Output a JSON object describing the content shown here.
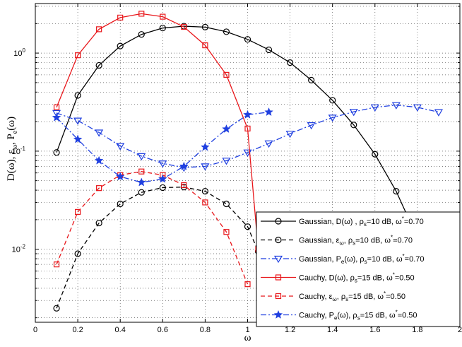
{
  "chart_data": {
    "type": "line",
    "xlabel": "ω",
    "ylabel": "D(ω),  ε",
    "ylabel_sub": "ω",
    "ylabel_tail": ",  P",
    "ylabel_sub2": "e",
    "ylabel_end": "(ω)",
    "xlim": [
      0,
      2
    ],
    "ylim": [
      0.0018,
      3.2
    ],
    "yscale": "log",
    "grid": "dotted",
    "legend_position": "bottom-right",
    "x_ticks": [
      "0",
      "0.2",
      "0.4",
      "0.6",
      "0.8",
      "1",
      "1.2",
      "1.4",
      "1.6",
      "1.8",
      "2"
    ],
    "y_ticks": [
      {
        "base": "10",
        "exp": "-2",
        "value": 0.01
      },
      {
        "base": "10",
        "exp": "-1",
        "value": 0.1
      },
      {
        "base": "10",
        "exp": "0",
        "value": 1
      }
    ],
    "series": [
      {
        "name": "Gaussian, D(ω) , ρ_s=10 dB, ω*=0.70",
        "legend": {
          "main": "Gaussian, D(ω) , ρ",
          "sub": "s",
          "mid": "=10 dB, ω",
          "sup": "*",
          "end": "=0.70"
        },
        "color": "#000000",
        "dash": "",
        "marker": "circle",
        "x": [
          0.1,
          0.2,
          0.3,
          0.4,
          0.5,
          0.6,
          0.7,
          0.8,
          0.9,
          1.0,
          1.1,
          1.2,
          1.3,
          1.4,
          1.5,
          1.6,
          1.7,
          1.8
        ],
        "y": [
          0.097,
          0.37,
          0.75,
          1.18,
          1.55,
          1.8,
          1.88,
          1.84,
          1.65,
          1.38,
          1.08,
          0.8,
          0.53,
          0.33,
          0.185,
          0.093,
          0.039,
          0.013
        ]
      },
      {
        "name": "Gaussian, ε_ω, ρ_s=10 dB, ω*=0.70",
        "legend": {
          "main": "Gaussian, ε",
          "sub0": "ω",
          "mid0": ", ρ",
          "sub": "s",
          "mid": "=10 dB, ω",
          "sup": "*",
          "end": "=0.70"
        },
        "color": "#000000",
        "dash": "6,4",
        "marker": "circle",
        "x": [
          0.1,
          0.2,
          0.3,
          0.4,
          0.5,
          0.6,
          0.7,
          0.8,
          0.9,
          1.0,
          1.05
        ],
        "y": [
          0.0025,
          0.009,
          0.0185,
          0.029,
          0.038,
          0.0425,
          0.043,
          0.039,
          0.029,
          0.017,
          0.0095
        ]
      },
      {
        "name": "Gaussian, P_e(ω), ρ_s=10 dB, ω*=0.70",
        "legend": {
          "main": "Gaussian, P",
          "sub0": "e",
          "mid0": "(ω), ρ",
          "sub": "s",
          "mid": "=10 dB, ω",
          "sup": "*",
          "end": "=0.70"
        },
        "color": "#1f3fe0",
        "dash": "8,3,2,3",
        "marker": "triangle",
        "x": [
          0.1,
          0.2,
          0.3,
          0.4,
          0.5,
          0.6,
          0.7,
          0.8,
          0.9,
          1.0,
          1.1,
          1.2,
          1.3,
          1.4,
          1.5,
          1.6,
          1.7,
          1.8,
          1.9
        ],
        "y": [
          0.245,
          0.205,
          0.155,
          0.113,
          0.089,
          0.075,
          0.068,
          0.07,
          0.08,
          0.097,
          0.12,
          0.151,
          0.184,
          0.22,
          0.252,
          0.28,
          0.295,
          0.28,
          0.25
        ]
      },
      {
        "name": "Cauchy, D(ω), ρ_s=15 dB, ω*=0.50",
        "legend": {
          "main": "Cauchy, D(ω), ρ",
          "sub": "s",
          "mid": "=15 dB, ω",
          "sup": "*",
          "end": "=0.50"
        },
        "color": "#e8161a",
        "dash": "",
        "marker": "square",
        "x": [
          0.1,
          0.2,
          0.3,
          0.4,
          0.5,
          0.6,
          0.7,
          0.8,
          0.9,
          1.0,
          1.05
        ],
        "y": [
          0.28,
          0.95,
          1.75,
          2.3,
          2.52,
          2.35,
          1.85,
          1.2,
          0.6,
          0.17,
          0.01
        ]
      },
      {
        "name": "Cauchy, ε_ω, ρ_s=15 dB, ω*=0.50",
        "legend": {
          "main": "Cauchy, ε",
          "sub0": "ω",
          "mid0": ", ρ",
          "sub": "s",
          "mid": "=15 dB, ω",
          "sup": "*",
          "end": "=0.50"
        },
        "color": "#e8161a",
        "dash": "6,4",
        "marker": "square",
        "x": [
          0.1,
          0.2,
          0.3,
          0.4,
          0.5,
          0.6,
          0.7,
          0.8,
          0.9,
          1.0
        ],
        "y": [
          0.007,
          0.024,
          0.042,
          0.057,
          0.062,
          0.057,
          0.045,
          0.03,
          0.015,
          0.0044
        ]
      },
      {
        "name": "Cauchy, P_e(ω), ρ_s=15 dB, ω*=0.50",
        "legend": {
          "main": "Cauchy, P",
          "sub0": "e",
          "mid0": "(ω), ρ",
          "sub": "s",
          "mid": "=15 dB, ω",
          "sup": "*",
          "end": "=0.50"
        },
        "color": "#1f3fe0",
        "dash": "8,3,2,3",
        "marker": "star",
        "x": [
          0.1,
          0.2,
          0.3,
          0.4,
          0.5,
          0.6,
          0.7,
          0.8,
          0.9,
          1.0,
          1.1
        ],
        "y": [
          0.22,
          0.132,
          0.08,
          0.055,
          0.048,
          0.052,
          0.07,
          0.11,
          0.168,
          0.235,
          0.25
        ]
      }
    ]
  }
}
